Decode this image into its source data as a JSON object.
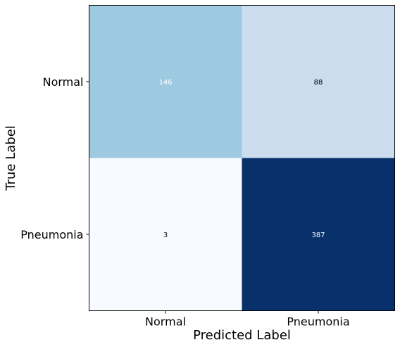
{
  "chart_data": {
    "type": "heatmap",
    "title": "",
    "xlabel": "Predicted Label",
    "ylabel": "True Label",
    "x_categories": [
      "Normal",
      "Pneumonia"
    ],
    "y_categories": [
      "Normal",
      "Pneumonia"
    ],
    "values": [
      [
        146,
        88
      ],
      [
        3,
        387
      ]
    ],
    "colormap": "Blues",
    "cell_colors": [
      [
        "#9ecae1",
        "#cbddee"
      ],
      [
        "#f7fbff",
        "#08306b"
      ]
    ],
    "text_colors": [
      [
        "#ffffff",
        "#000000"
      ],
      [
        "#000000",
        "#ffffff"
      ]
    ]
  }
}
